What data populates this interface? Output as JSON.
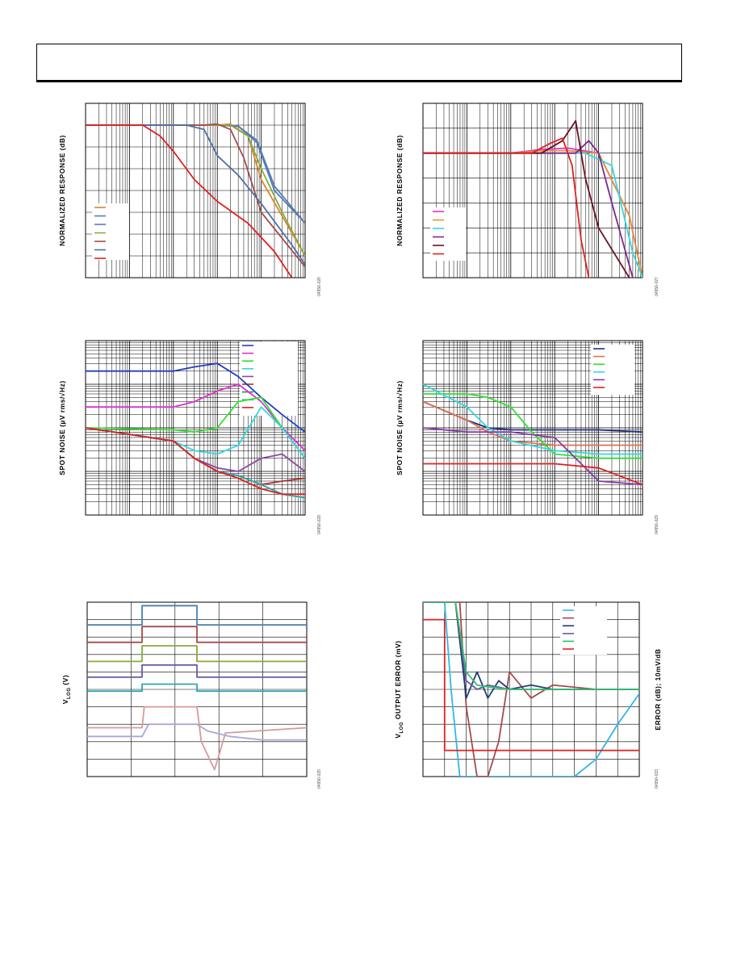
{
  "chart_data": [
    {
      "id": "c1",
      "type": "line",
      "title": "",
      "xlabel": "",
      "ylabel": "NORMALIZED RESPONSE (dB)",
      "xscale": "log",
      "xlim": [
        1,
        100000
      ],
      "ylim": [
        0,
        8
      ],
      "grid": true,
      "legend": "left",
      "figure_number": "04956-026",
      "series": [
        {
          "color": "#d9852f",
          "x": [
            1,
            1000,
            2000,
            5000,
            10000,
            100000
          ],
          "y": [
            7,
            7,
            7.05,
            6.5,
            4.5,
            1
          ]
        },
        {
          "color": "#4a7fbf",
          "x": [
            1,
            1000,
            3000,
            8000,
            20000,
            100000
          ],
          "y": [
            7,
            7,
            6.95,
            6.2,
            4,
            2.5
          ]
        },
        {
          "color": "#5d7ba8",
          "x": [
            1,
            1000,
            3000,
            8000,
            20000,
            100000
          ],
          "y": [
            7,
            7,
            6.95,
            6.3,
            4.2,
            2.5
          ]
        },
        {
          "color": "#8aaa3a",
          "x": [
            1,
            1000,
            2000,
            5000,
            10000,
            30000,
            100000
          ],
          "y": [
            7,
            7,
            7,
            6.5,
            5,
            3,
            1
          ]
        },
        {
          "color": "#a64a4a",
          "x": [
            1,
            500,
            1000,
            2000,
            4000,
            10000,
            100000
          ],
          "y": [
            7,
            7,
            7.05,
            6.8,
            5.5,
            3,
            0.5
          ]
        },
        {
          "color": "#4f6fa6",
          "x": [
            1,
            200,
            500,
            1000,
            3000,
            10000,
            50000,
            100000
          ],
          "y": [
            7,
            7,
            6.8,
            5.6,
            4.7,
            3.4,
            1.5,
            0.6
          ]
        },
        {
          "color": "#e02020",
          "x": [
            1,
            20,
            50,
            100,
            300,
            1000,
            5000,
            20000,
            50000
          ],
          "y": [
            7,
            7,
            6.5,
            5.8,
            4.5,
            3.5,
            2.5,
            1.2,
            0
          ]
        }
      ]
    },
    {
      "id": "c2",
      "type": "line",
      "title": "",
      "xlabel": "",
      "ylabel": "NORMALIZED RESPONSE (dB)",
      "xscale": "log",
      "xlim": [
        1,
        100000
      ],
      "ylim": [
        0,
        7
      ],
      "grid": true,
      "legend": "left",
      "figure_number": "04956-027",
      "series": [
        {
          "color": "#e030d0",
          "x": [
            1,
            100,
            500,
            2000,
            10000,
            50000,
            100000
          ],
          "y": [
            5,
            5,
            5.15,
            5.2,
            5,
            2.5,
            0
          ]
        },
        {
          "color": "#e89030",
          "x": [
            1,
            100,
            500,
            2000,
            10000,
            50000,
            100000
          ],
          "y": [
            5,
            5,
            5.1,
            5.1,
            5,
            2.5,
            0
          ]
        },
        {
          "color": "#30d8e0",
          "x": [
            1,
            100,
            1000,
            5000,
            20000,
            60000,
            100000
          ],
          "y": [
            5,
            5,
            5,
            5,
            4.5,
            1,
            0
          ]
        },
        {
          "color": "#7a2a8a",
          "x": [
            1,
            1000,
            3000,
            6000,
            10000,
            20000,
            60000
          ],
          "y": [
            5,
            5,
            5,
            5.5,
            5,
            3,
            0
          ]
        },
        {
          "color": "#6a1020",
          "x": [
            1,
            500,
            1500,
            3000,
            5000,
            10000,
            50000
          ],
          "y": [
            5,
            5,
            5.5,
            6.3,
            4,
            2,
            0
          ]
        },
        {
          "color": "#e02020",
          "x": [
            1,
            300,
            800,
            1500,
            2500,
            4000,
            6000
          ],
          "y": [
            5,
            5,
            5.4,
            5.6,
            4.5,
            1.5,
            0
          ]
        }
      ]
    },
    {
      "id": "c3",
      "type": "line",
      "title": "",
      "xlabel": "",
      "ylabel": "SPOT NOISE (µV rms/√Hz)",
      "xscale": "log",
      "yscale": "log",
      "xlim": [
        1,
        100000
      ],
      "ylim": [
        0.01,
        100
      ],
      "grid": true,
      "legend": "top-right",
      "figure_number": "04956-028",
      "series": [
        {
          "color": "#1f3fbf",
          "x": [
            1,
            100,
            300,
            1000,
            3000,
            10000,
            30000,
            100000
          ],
          "y": [
            20,
            20,
            25,
            30,
            15,
            5,
            2,
            0.8
          ]
        },
        {
          "color": "#e030d0",
          "x": [
            1,
            100,
            300,
            1000,
            3000,
            10000,
            30000,
            100000
          ],
          "y": [
            3,
            3,
            4,
            7,
            10,
            4,
            1,
            0.3
          ]
        },
        {
          "color": "#30e030",
          "x": [
            1,
            100,
            300,
            1000,
            3000,
            10000,
            30000,
            100000
          ],
          "y": [
            1,
            0.9,
            0.8,
            1,
            4,
            5,
            1,
            0.2
          ]
        },
        {
          "color": "#30d8e0",
          "x": [
            1,
            100,
            300,
            1000,
            3000,
            10000,
            30000,
            100000
          ],
          "y": [
            1,
            0.5,
            0.3,
            0.25,
            0.4,
            3,
            1,
            0.2
          ]
        },
        {
          "color": "#8a4aa6",
          "x": [
            1,
            100,
            300,
            1000,
            3000,
            10000,
            30000,
            100000
          ],
          "y": [
            1,
            0.5,
            0.2,
            0.12,
            0.1,
            0.2,
            0.25,
            0.1
          ]
        },
        {
          "color": "#a63030",
          "x": [
            1,
            100,
            300,
            1000,
            3000,
            10000,
            30000,
            100000
          ],
          "y": [
            1,
            0.5,
            0.2,
            0.1,
            0.08,
            0.05,
            0.06,
            0.07
          ]
        },
        {
          "color": "#1f8f6f",
          "x": [
            1,
            100,
            300,
            1000,
            3000,
            10000,
            30000,
            100000
          ],
          "y": [
            1,
            0.5,
            0.2,
            0.1,
            0.08,
            0.05,
            0.03,
            0.025
          ]
        },
        {
          "color": "#2fa6a6",
          "x": [
            1,
            100,
            300,
            1000,
            3000,
            10000,
            30000,
            100000
          ],
          "y": [
            1,
            0.5,
            0.2,
            0.1,
            0.08,
            0.05,
            0.03,
            0.025
          ]
        },
        {
          "color": "#e02020",
          "x": [
            1,
            100,
            300,
            1000,
            3000,
            10000,
            30000,
            100000
          ],
          "y": [
            1,
            0.5,
            0.2,
            0.1,
            0.07,
            0.04,
            0.03,
            0.03
          ]
        }
      ]
    },
    {
      "id": "c4",
      "type": "line",
      "title": "",
      "xlabel": "",
      "ylabel": "SPOT NOISE (µV rms/√Hz)",
      "xscale": "log",
      "yscale": "log",
      "xlim": [
        1,
        100000
      ],
      "ylim": [
        0.01,
        100
      ],
      "grid": true,
      "legend": "top-right",
      "figure_number": "04956-029",
      "series": [
        {
          "color": "#1f2f7f",
          "x": [
            1,
            10,
            30,
            100,
            1000,
            10000,
            100000
          ],
          "y": [
            4,
            1.5,
            1,
            0.9,
            0.9,
            0.9,
            0.8
          ]
        },
        {
          "color": "#e07050",
          "x": [
            1,
            10,
            30,
            100,
            1000,
            10000,
            100000
          ],
          "y": [
            4,
            1.5,
            0.8,
            0.5,
            0.4,
            0.4,
            0.4
          ]
        },
        {
          "color": "#30e030",
          "x": [
            1,
            10,
            30,
            100,
            300,
            1000,
            10000,
            100000
          ],
          "y": [
            6,
            6,
            5,
            3,
            0.8,
            0.25,
            0.2,
            0.2
          ]
        },
        {
          "color": "#30d8e0",
          "x": [
            1,
            10,
            30,
            100,
            1000,
            10000,
            100000
          ],
          "y": [
            10,
            3,
            1,
            0.5,
            0.3,
            0.25,
            0.25
          ]
        },
        {
          "color": "#8a3aa6",
          "x": [
            1,
            10,
            100,
            1000,
            3000,
            10000,
            100000
          ],
          "y": [
            1,
            0.8,
            0.8,
            0.6,
            0.2,
            0.06,
            0.05
          ]
        },
        {
          "color": "#e02020",
          "x": [
            1,
            10,
            100,
            1000,
            10000,
            100000
          ],
          "y": [
            0.15,
            0.15,
            0.15,
            0.15,
            0.12,
            0.05
          ]
        }
      ]
    },
    {
      "id": "c5",
      "type": "line",
      "title": "",
      "xlabel": "",
      "ylabel": "VLOG (V)",
      "ylabel_main": "V",
      "ylabel_sub": "LOG",
      "ylabel_rest": " (V)",
      "xlim": [
        0,
        10
      ],
      "ylim": [
        0,
        10
      ],
      "grid": true,
      "legend": "none",
      "figure_number": "04956-025",
      "series": [
        {
          "color": "#4a7faf",
          "x": [
            0,
            2.5,
            2.5,
            5,
            5,
            10
          ],
          "y": [
            8.7,
            8.7,
            9.8,
            9.8,
            8.7,
            8.7
          ]
        },
        {
          "color": "#a64a4a",
          "x": [
            0,
            2.5,
            2.5,
            5,
            5,
            10
          ],
          "y": [
            7.7,
            7.7,
            8.6,
            8.6,
            7.7,
            7.7
          ]
        },
        {
          "color": "#8aaa3a",
          "x": [
            0,
            2.5,
            2.5,
            5,
            5,
            10
          ],
          "y": [
            6.6,
            6.6,
            7.5,
            7.5,
            6.6,
            6.6
          ]
        },
        {
          "color": "#6a5aa6",
          "x": [
            0,
            2.5,
            2.5,
            5,
            5,
            10
          ],
          "y": [
            5.7,
            5.7,
            6.4,
            6.4,
            5.7,
            5.7
          ]
        },
        {
          "color": "#2fa6b0",
          "x": [
            0,
            2.5,
            2.5,
            5,
            5,
            10
          ],
          "y": [
            4.9,
            4.9,
            5.3,
            5.3,
            4.9,
            4.9
          ]
        },
        {
          "color": "#d89a9a",
          "x": [
            0,
            2.5,
            2.6,
            5,
            5.2,
            5.8,
            6.3,
            10
          ],
          "y": [
            2.8,
            2.8,
            4,
            4,
            2,
            0.4,
            2.5,
            2.8
          ]
        },
        {
          "color": "#a8a8d8",
          "x": [
            0,
            2.5,
            2.8,
            5,
            5.5,
            6.5,
            8,
            10
          ],
          "y": [
            2.3,
            2.3,
            3,
            3,
            2.6,
            2.3,
            2.1,
            2.1
          ]
        }
      ]
    },
    {
      "id": "c6",
      "type": "line",
      "title": "",
      "xlabel": "",
      "ylabel": "VLOG OUTPUT ERROR (mV)",
      "ylabel_main": "V",
      "ylabel_sub": "LOG",
      "ylabel_rest": " OUTPUT ERROR (mV)",
      "ylabel_right": "ERROR (dB); 10mV/dB",
      "xlim": [
        0,
        10
      ],
      "ylim": [
        -10,
        10
      ],
      "grid": true,
      "legend": "top-right",
      "figure_number": "04956-033",
      "series": [
        {
          "color": "#30b8e8",
          "x": [
            0,
            1,
            1.3,
            1.7,
            2,
            3,
            5,
            6,
            7,
            8,
            9,
            10
          ],
          "y": [
            10,
            10,
            0,
            -10,
            -10,
            -10,
            -10,
            -10,
            -10,
            -8,
            -4,
            -0.5
          ]
        },
        {
          "color": "#a64a4a",
          "x": [
            0,
            1.7,
            2,
            2.5,
            3,
            3.5,
            4,
            5,
            6,
            8,
            10
          ],
          "y": [
            10,
            10,
            -2,
            -10,
            -10,
            -6,
            2,
            -1,
            0.5,
            0,
            0
          ]
        },
        {
          "color": "#1f3f6f",
          "x": [
            0,
            1.5,
            2,
            2.5,
            3,
            3.5,
            4,
            5,
            6,
            8,
            10
          ],
          "y": [
            10,
            10,
            -1,
            2,
            -1,
            1,
            0,
            0.5,
            0,
            0,
            0
          ]
        },
        {
          "color": "#6a5aa6",
          "x": [
            0,
            1.5,
            2,
            2.5,
            3,
            4,
            5,
            6,
            8,
            10
          ],
          "y": [
            10,
            10,
            1,
            0,
            0.5,
            0,
            0,
            0,
            0,
            0
          ]
        },
        {
          "color": "#30c070",
          "x": [
            0,
            1.5,
            2,
            2.5,
            3,
            4,
            5,
            6,
            8,
            10
          ],
          "y": [
            10,
            10,
            2,
            0.5,
            0.3,
            0,
            0,
            0,
            0,
            0
          ]
        },
        {
          "color": "#e02020",
          "x": [
            0,
            1,
            1,
            1.2,
            10
          ],
          "y": [
            8,
            8,
            -7,
            -7,
            -7
          ]
        }
      ]
    }
  ]
}
